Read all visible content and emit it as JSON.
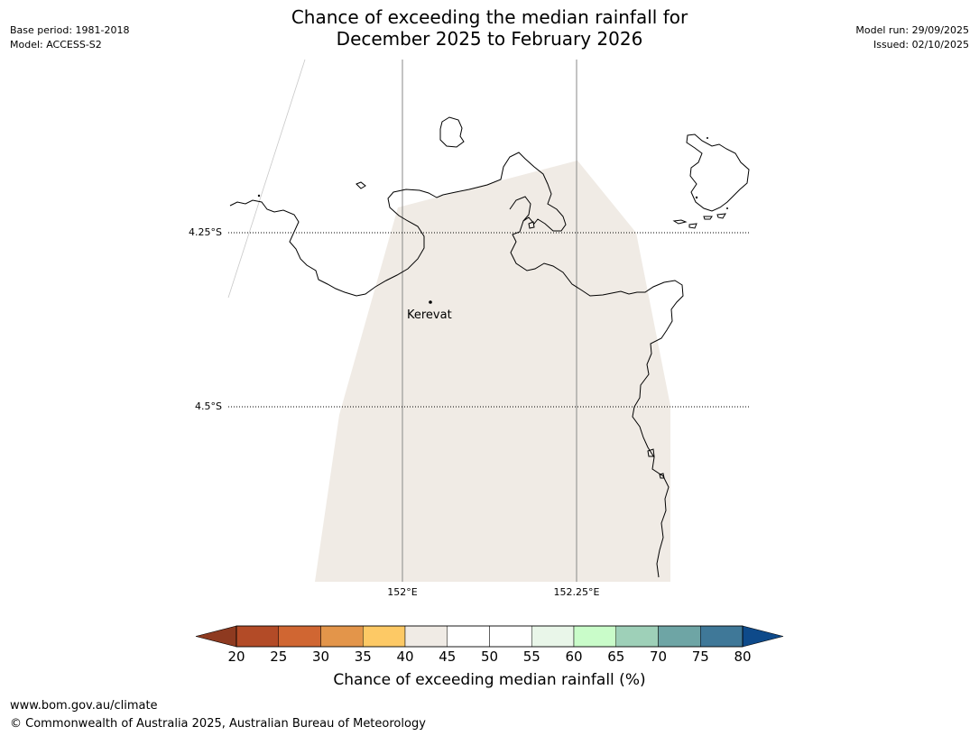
{
  "header": {
    "title_line1": "Chance of exceeding the median rainfall for",
    "title_line2": "December 2025 to February 2026",
    "base_period": "Base period: 1981-2018",
    "model": "Model: ACCESS-S2",
    "model_run": "Model run: 29/09/2025",
    "issued": "Issued: 02/10/2025"
  },
  "map": {
    "lat_labels": [
      "4.25°S",
      "4.5°S"
    ],
    "lon_labels": [
      "152°E",
      "152.25°E"
    ],
    "places": [
      {
        "name": "Kerevat"
      }
    ],
    "region_fill_color": "#f0ebe5",
    "coastline_color": "#000000"
  },
  "colorbar": {
    "title": "Chance of exceeding median rainfall (%)",
    "ticks": [
      "20",
      "25",
      "30",
      "35",
      "40",
      "45",
      "50",
      "55",
      "60",
      "65",
      "70",
      "75",
      "80"
    ],
    "under_color": "#8e3a20",
    "over_color": "#0e4a8a",
    "bins": [
      {
        "range": "20-25",
        "color": "#b34b27"
      },
      {
        "range": "25-30",
        "color": "#d06632"
      },
      {
        "range": "30-35",
        "color": "#e3954a"
      },
      {
        "range": "35-40",
        "color": "#fdc965"
      },
      {
        "range": "40-45",
        "color": "#f0ebe5"
      },
      {
        "range": "45-50",
        "color": "#ffffff"
      },
      {
        "range": "50-55",
        "color": "#ffffff"
      },
      {
        "range": "55-60",
        "color": "#e9f6e9"
      },
      {
        "range": "60-65",
        "color": "#c9fcc9"
      },
      {
        "range": "65-70",
        "color": "#9ed0b8"
      },
      {
        "range": "70-75",
        "color": "#6ea5a5"
      },
      {
        "range": "75-80",
        "color": "#3f7898"
      }
    ]
  },
  "footer": {
    "url": "www.bom.gov.au/climate",
    "copyright": "© Commonwealth of Australia 2025, Australian Bureau of Meteorology"
  }
}
